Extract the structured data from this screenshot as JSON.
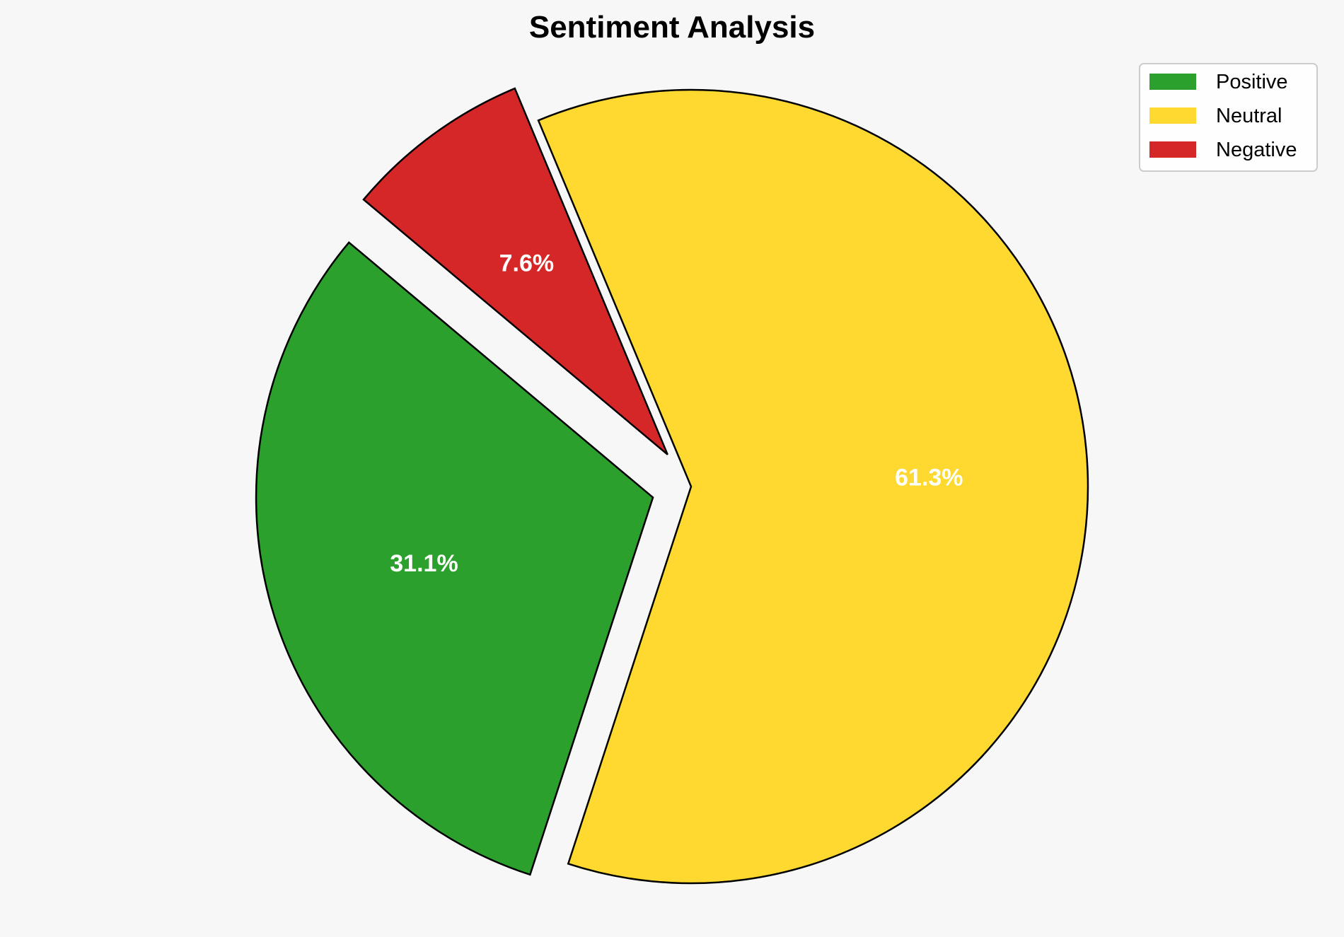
{
  "chart_data": {
    "type": "pie",
    "title": "Sentiment Analysis",
    "categories": [
      "Positive",
      "Neutral",
      "Negative"
    ],
    "values": [
      31.1,
      61.3,
      7.6
    ],
    "labels": [
      "31.1%",
      "61.3%",
      "7.6%"
    ],
    "colors": [
      "#2ca02c",
      "#ffd92f",
      "#d62728"
    ],
    "explode": [
      0.1,
      0,
      0.1
    ],
    "start_angle": 140,
    "direction": "counterclockwise",
    "edge_color": "#000000",
    "label_color": "#ffffff",
    "legend": {
      "placement": "top-right",
      "entries": [
        "Positive",
        "Neutral",
        "Negative"
      ]
    },
    "background": "#f7f7f7"
  }
}
